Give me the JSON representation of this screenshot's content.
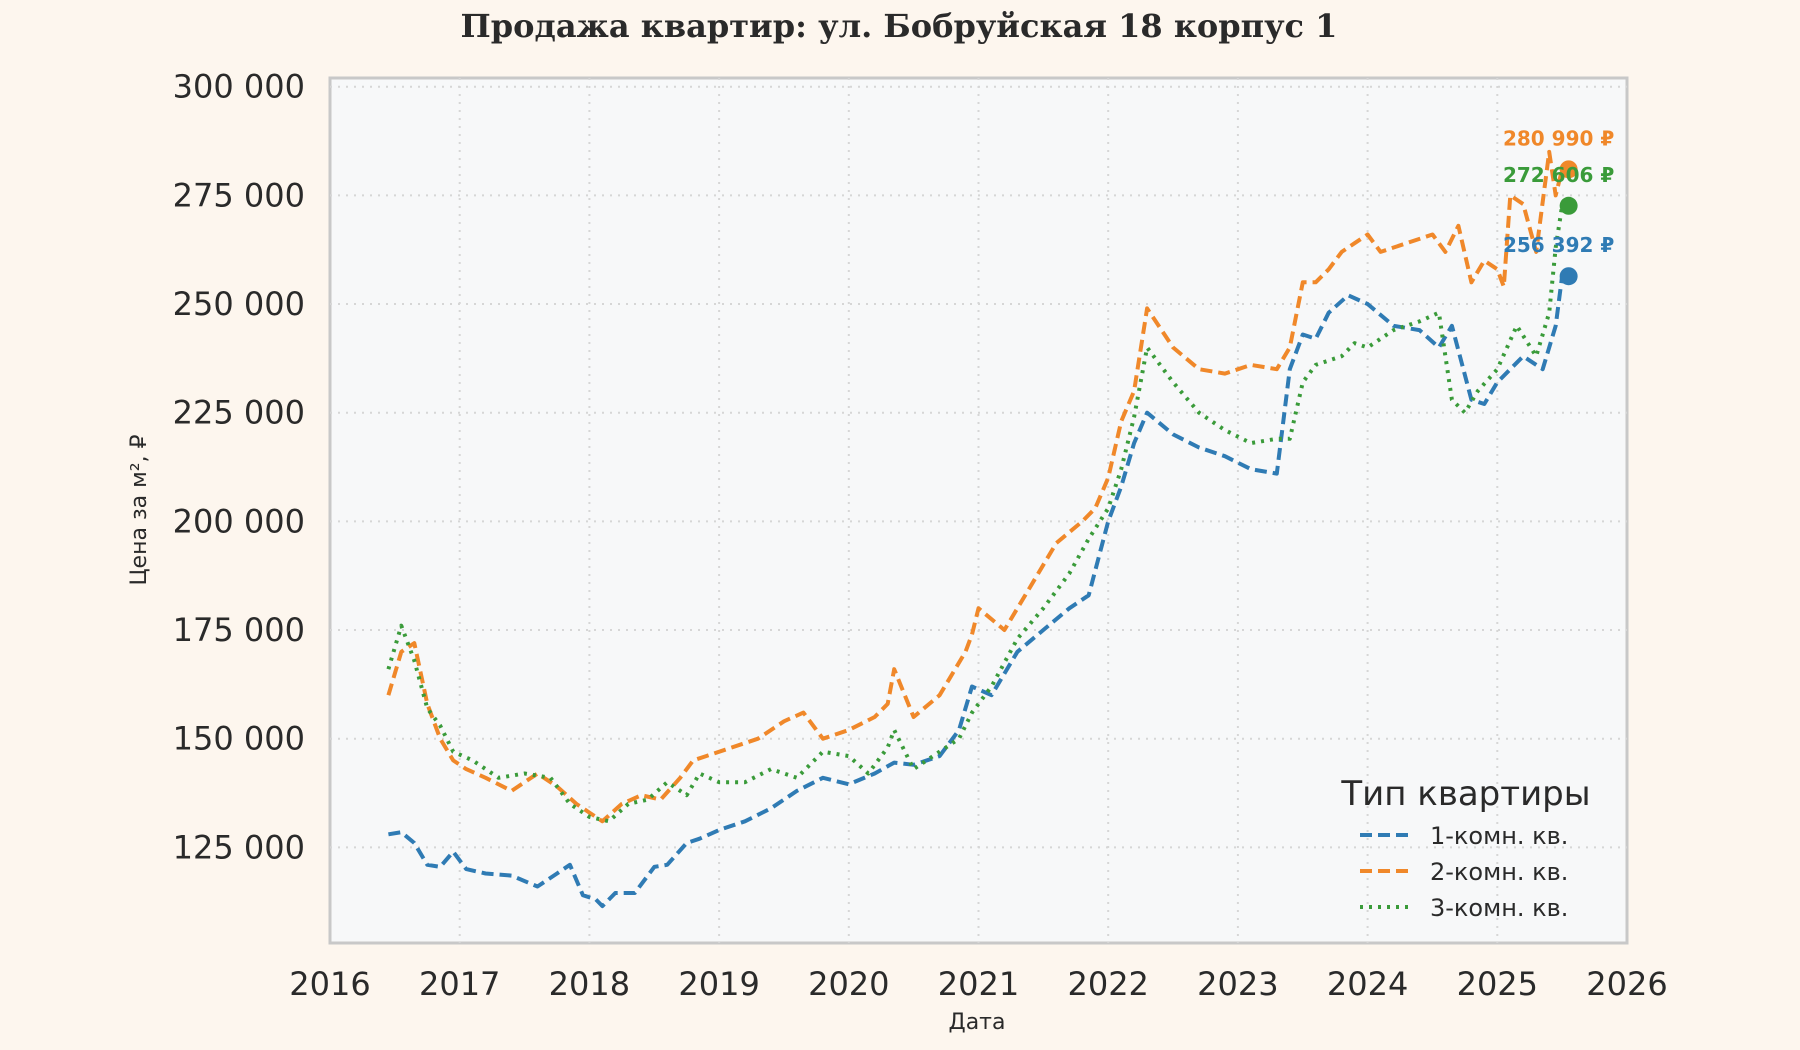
{
  "chart_data": {
    "type": "line",
    "title": "Продажа квартир: ул. Бобруйская 18 корпус 1",
    "xlabel": "Дата",
    "ylabel": "Цена за м², ₽",
    "xlim": [
      2016.0,
      2026.0
    ],
    "ylim": [
      103000,
      302000
    ],
    "x_ticks": [
      2016,
      2017,
      2018,
      2019,
      2020,
      2021,
      2022,
      2023,
      2024,
      2025,
      2026
    ],
    "y_ticks": [
      125000,
      150000,
      175000,
      200000,
      225000,
      250000,
      275000,
      300000
    ],
    "y_tick_labels": [
      "125 000",
      "150 000",
      "175 000",
      "200 000",
      "225 000",
      "250 000",
      "275 000",
      "300 000"
    ],
    "x_tick_labels": [
      "2016",
      "2017",
      "2018",
      "2019",
      "2020",
      "2021",
      "2022",
      "2023",
      "2024",
      "2025",
      "2026"
    ],
    "grid": true,
    "legend": {
      "title": "Тип квартиры",
      "position": "bottom-right"
    },
    "series": [
      {
        "name": "1-комн. кв.",
        "color": "#2f7bb4",
        "dash": "dashed",
        "x": [
          2016.45,
          2016.55,
          2016.65,
          2016.75,
          2016.85,
          2016.95,
          2017.05,
          2017.2,
          2017.4,
          2017.6,
          2017.75,
          2017.85,
          2017.95,
          2018.05,
          2018.1,
          2018.2,
          2018.35,
          2018.5,
          2018.6,
          2018.75,
          2018.85,
          2019.0,
          2019.2,
          2019.4,
          2019.6,
          2019.8,
          2020.0,
          2020.2,
          2020.35,
          2020.5,
          2020.7,
          2020.85,
          2020.95,
          2021.1,
          2021.3,
          2021.5,
          2021.7,
          2021.85,
          2022.0,
          2022.1,
          2022.2,
          2022.3,
          2022.5,
          2022.7,
          2022.9,
          2023.1,
          2023.3,
          2023.4,
          2023.5,
          2023.6,
          2023.7,
          2023.85,
          2024.0,
          2024.2,
          2024.4,
          2024.55,
          2024.65,
          2024.8,
          2024.9,
          2025.0,
          2025.2,
          2025.35,
          2025.45,
          2025.5
        ],
        "y": [
          128000,
          128500,
          126000,
          121000,
          120500,
          124000,
          120000,
          119000,
          118500,
          116000,
          119000,
          121000,
          114000,
          113000,
          111500,
          114500,
          114500,
          120500,
          121000,
          126000,
          127000,
          129000,
          131000,
          134000,
          138000,
          141000,
          139500,
          142000,
          144500,
          144000,
          146000,
          152000,
          162000,
          160000,
          170000,
          175000,
          180000,
          183000,
          200000,
          208000,
          218000,
          225000,
          220000,
          217000,
          215000,
          212000,
          211000,
          235000,
          243000,
          242000,
          248000,
          252000,
          250000,
          245000,
          244000,
          240000,
          245000,
          228000,
          227000,
          232000,
          238000,
          235000,
          245000,
          256392
        ]
      },
      {
        "name": "2-комн. кв.",
        "color": "#f0882a",
        "dash": "dashed",
        "x": [
          2016.45,
          2016.55,
          2016.65,
          2016.75,
          2016.85,
          2016.95,
          2017.05,
          2017.2,
          2017.4,
          2017.6,
          2017.75,
          2017.9,
          2018.0,
          2018.1,
          2018.25,
          2018.4,
          2018.55,
          2018.7,
          2018.8,
          2018.9,
          2019.1,
          2019.3,
          2019.5,
          2019.65,
          2019.8,
          2020.0,
          2020.2,
          2020.3,
          2020.35,
          2020.5,
          2020.7,
          2020.9,
          2020.95,
          2021.0,
          2021.2,
          2021.4,
          2021.6,
          2021.8,
          2021.9,
          2022.0,
          2022.1,
          2022.2,
          2022.3,
          2022.5,
          2022.7,
          2022.9,
          2023.1,
          2023.3,
          2023.4,
          2023.5,
          2023.6,
          2023.7,
          2023.8,
          2023.9,
          2024.0,
          2024.1,
          2024.3,
          2024.5,
          2024.6,
          2024.7,
          2024.8,
          2024.9,
          2025.0,
          2025.05,
          2025.1,
          2025.2,
          2025.3,
          2025.4,
          2025.45,
          2025.5
        ],
        "y": [
          160000,
          170000,
          172000,
          158000,
          150000,
          145000,
          143000,
          141000,
          138000,
          142000,
          139000,
          135000,
          133000,
          131000,
          135000,
          137000,
          136000,
          141000,
          145000,
          146000,
          148000,
          150000,
          154000,
          156000,
          150000,
          152000,
          155000,
          158000,
          166000,
          155000,
          160000,
          170000,
          174000,
          180000,
          175000,
          185000,
          195000,
          200000,
          203000,
          210000,
          223000,
          230000,
          249000,
          240000,
          235000,
          234000,
          236000,
          235000,
          240000,
          255000,
          255000,
          258000,
          262000,
          264000,
          266000,
          262000,
          264000,
          266000,
          262000,
          268000,
          255000,
          260000,
          258000,
          254000,
          275000,
          273000,
          262000,
          285000,
          275000,
          280990
        ]
      },
      {
        "name": "3-комн. кв.",
        "color": "#3a9b3a",
        "dash": "dotted",
        "x": [
          2016.45,
          2016.55,
          2016.65,
          2016.75,
          2016.85,
          2016.95,
          2017.1,
          2017.3,
          2017.5,
          2017.7,
          2017.85,
          2018.0,
          2018.15,
          2018.3,
          2018.45,
          2018.6,
          2018.75,
          2018.85,
          2019.0,
          2019.2,
          2019.4,
          2019.6,
          2019.8,
          2020.0,
          2020.15,
          2020.3,
          2020.35,
          2020.5,
          2020.7,
          2020.85,
          2020.95,
          2021.1,
          2021.3,
          2021.5,
          2021.7,
          2021.85,
          2022.0,
          2022.1,
          2022.2,
          2022.3,
          2022.5,
          2022.7,
          2022.9,
          2023.1,
          2023.3,
          2023.4,
          2023.5,
          2023.6,
          2023.8,
          2023.9,
          2024.0,
          2024.2,
          2024.4,
          2024.55,
          2024.65,
          2024.75,
          2024.85,
          2025.0,
          2025.15,
          2025.3,
          2025.4,
          2025.45,
          2025.5
        ],
        "y": [
          166000,
          176000,
          168000,
          157000,
          153000,
          147000,
          145000,
          141000,
          142000,
          141000,
          135000,
          132000,
          131000,
          135000,
          136000,
          140000,
          137000,
          142000,
          140000,
          140000,
          143000,
          141000,
          147000,
          146000,
          142000,
          148000,
          152000,
          143000,
          147000,
          150000,
          156000,
          162000,
          173000,
          180000,
          188000,
          196000,
          203000,
          212000,
          224000,
          240000,
          232000,
          225000,
          221000,
          218000,
          219000,
          219000,
          232000,
          236000,
          238000,
          241000,
          240000,
          244000,
          246000,
          248000,
          228000,
          225000,
          230000,
          235000,
          245000,
          238000,
          248000,
          263000,
          272606
        ]
      }
    ],
    "annotations": [
      {
        "series": "1-комн. кв.",
        "x": 2025.55,
        "y": 256392,
        "text": "256 392 ₽",
        "color": "#2f7bb4"
      },
      {
        "series": "2-комн. кв.",
        "x": 2025.55,
        "y": 280990,
        "text": "280 990 ₽",
        "color": "#f0882a"
      },
      {
        "series": "3-комн. кв.",
        "x": 2025.55,
        "y": 272606,
        "text": "272 606 ₽",
        "color": "#3a9b3a"
      }
    ]
  }
}
